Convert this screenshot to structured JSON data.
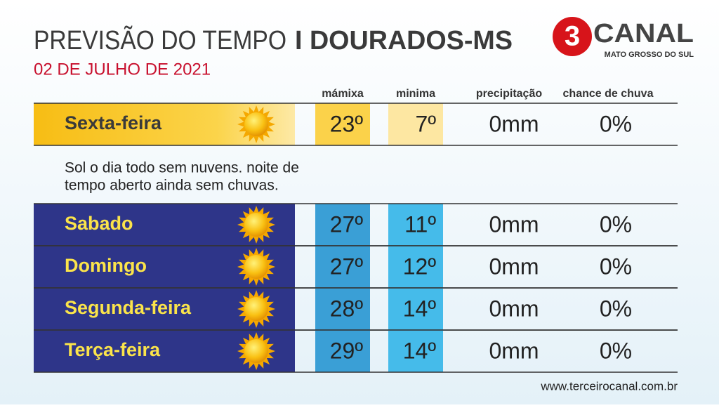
{
  "header": {
    "title": "PREVISÃO DO TEMPO",
    "city": "I DOURADOS-MS",
    "date": "02 DE JULHO DE 2021"
  },
  "logo": {
    "number": "3",
    "name": "CANAL",
    "region": "MATO GROSSO DO SUL"
  },
  "columns": [
    "mámixa",
    "minima",
    "precipitação",
    "chance de chuva"
  ],
  "today": {
    "day": "Sexta-feira",
    "max": "23º",
    "min": "7º",
    "rain": "0mm",
    "chance": "0%",
    "description": [
      "Sol o dia todo sem nuvens. noite de",
      "tempo aberto ainda sem chuvas."
    ]
  },
  "days": [
    {
      "day": "Sabado",
      "max": "27º",
      "min": "11º",
      "rain": "0mm",
      "chance": "0%"
    },
    {
      "day": "Domingo",
      "max": "27º",
      "min": "12º",
      "rain": "0mm",
      "chance": "0%"
    },
    {
      "day": "Segunda-feira",
      "max": "28º",
      "min": "14º",
      "rain": "0mm",
      "chance": "0%"
    },
    {
      "day": "Terça-feira",
      "max": "29º",
      "min": "14º",
      "rain": "0mm",
      "chance": "0%"
    }
  ],
  "footer": "www.terceirocanal.com.br"
}
